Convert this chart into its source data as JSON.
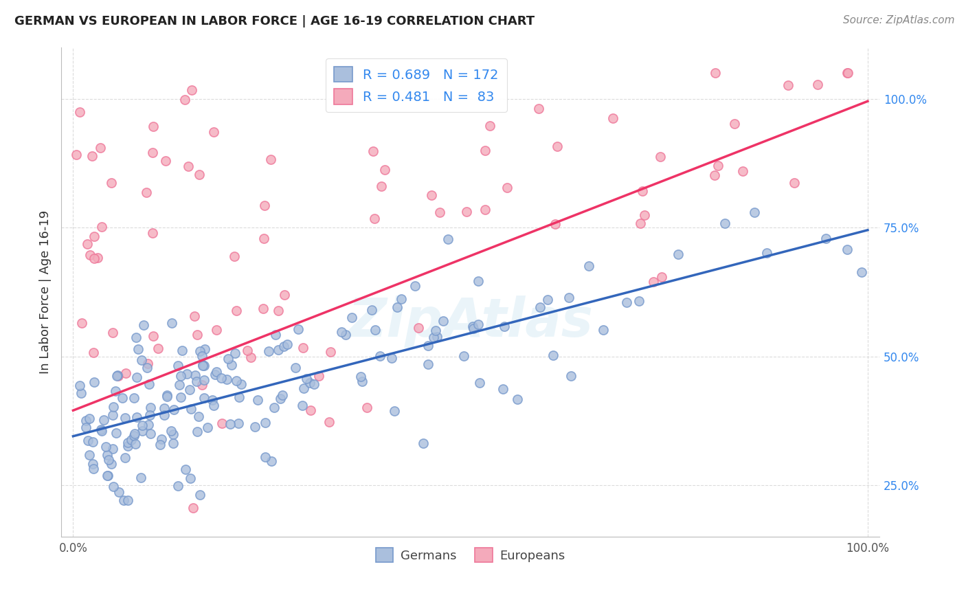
{
  "title": "GERMAN VS EUROPEAN IN LABOR FORCE | AGE 16-19 CORRELATION CHART",
  "source": "Source: ZipAtlas.com",
  "ylabel": "In Labor Force | Age 16-19",
  "blue_color": "#7799CC",
  "blue_fill": "#AABFDD",
  "pink_color": "#EE7799",
  "pink_fill": "#F4AABB",
  "trend_blue": "#3366BB",
  "trend_pink": "#EE3366",
  "legend_r_blue": "0.689",
  "legend_n_blue": "172",
  "legend_r_pink": "0.481",
  "legend_n_pink": " 83",
  "watermark": "ZipAtlas",
  "background": "#FFFFFF",
  "grid_color": "#CCCCCC",
  "seed": 42,
  "n_blue": 172,
  "n_pink": 83,
  "blue_slope": 0.4,
  "blue_intercept": 0.345,
  "pink_slope": 0.6,
  "pink_intercept": 0.395,
  "blue_noise": 0.07,
  "pink_noise": 0.14,
  "ylim_low": 0.15,
  "ylim_high": 1.1
}
